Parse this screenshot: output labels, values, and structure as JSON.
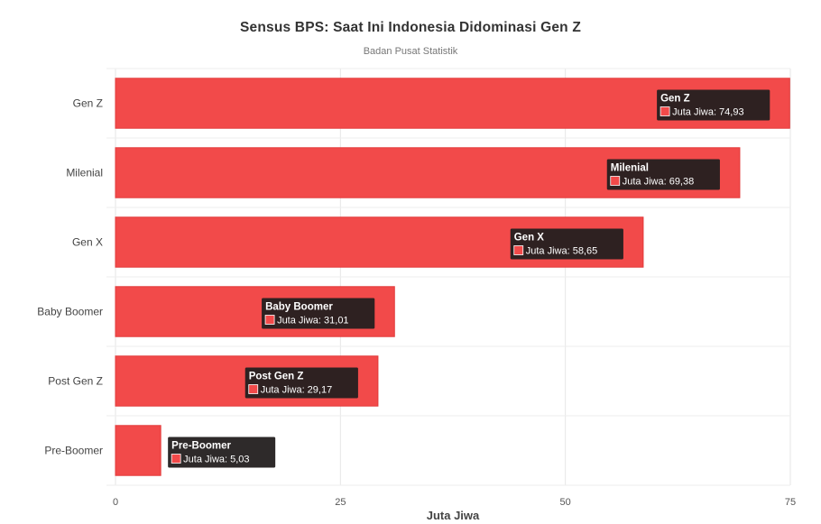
{
  "chart_data": {
    "type": "bar",
    "orientation": "horizontal",
    "title": "Sensus BPS: Saat Ini Indonesia Didominasi Gen Z",
    "subtitle": "Badan Pusat Statistik",
    "xlabel": "Juta Jiwa",
    "ylabel": "",
    "xlim": [
      0,
      75
    ],
    "xticks": [
      "0",
      "25",
      "50",
      "75"
    ],
    "grid": true,
    "categories": [
      "Gen Z",
      "Milenial",
      "Gen X",
      "Baby Boomer",
      "Post Gen Z",
      "Pre-Boomer"
    ],
    "series": [
      {
        "name": "Juta Jiwa",
        "color": "#f24a4a",
        "values": [
          74.93,
          69.38,
          58.65,
          31.01,
          29.17,
          5.03
        ],
        "labels": [
          "74,93",
          "69,38",
          "58,65",
          "31,01",
          "29,17",
          "5,03"
        ]
      }
    ]
  }
}
